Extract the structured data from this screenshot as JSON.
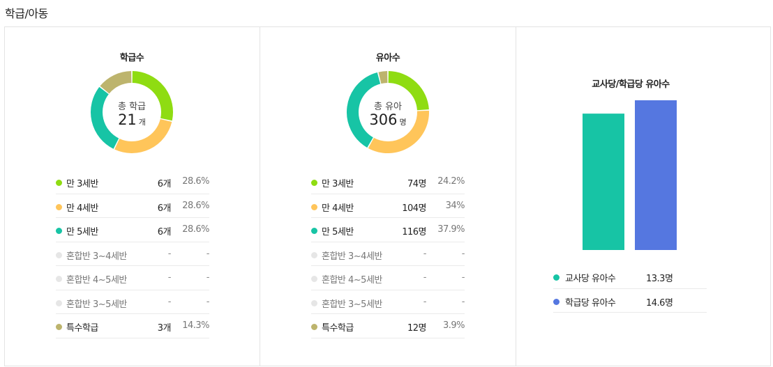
{
  "section_title": "학급/아동",
  "colors": {
    "age3": "#8fdc12",
    "age4": "#ffc55a",
    "age5": "#17c4a5",
    "mixed": "#e6e6e6",
    "special": "#bdb46d",
    "bar_teacher": "#17c4a5",
    "bar_class": "#5577e0"
  },
  "chart_data": [
    {
      "type": "pie",
      "title": "학급수",
      "center_label": "총 학급",
      "center_value": "21",
      "center_unit": "개",
      "categories": [
        "만 3세반",
        "만 4세반",
        "만 5세반",
        "혼합반 3~4세반",
        "혼합반 4~5세반",
        "혼합반 3~5세반",
        "특수학급"
      ],
      "values": [
        6,
        6,
        6,
        0,
        0,
        0,
        3
      ],
      "counts": [
        "6개",
        "6개",
        "6개",
        "-",
        "-",
        "-",
        "3개"
      ],
      "percents": [
        "28.6%",
        "28.6%",
        "28.6%",
        "-",
        "-",
        "-",
        "14.3%"
      ]
    },
    {
      "type": "pie",
      "title": "유아수",
      "center_label": "총 유아",
      "center_value": "306",
      "center_unit": "명",
      "categories": [
        "만 3세반",
        "만 4세반",
        "만 5세반",
        "혼합반 3~4세반",
        "혼합반 4~5세반",
        "혼합반 3~5세반",
        "특수학급"
      ],
      "values": [
        74,
        104,
        116,
        0,
        0,
        0,
        12
      ],
      "counts": [
        "74명",
        "104명",
        "116명",
        "-",
        "-",
        "-",
        "12명"
      ],
      "percents": [
        "24.2%",
        "34%",
        "37.9%",
        "-",
        "-",
        "-",
        "3.9%"
      ]
    },
    {
      "type": "bar",
      "title": "교사당/학급당 유아수",
      "categories": [
        "교사당 유아수",
        "학급당 유아수"
      ],
      "values": [
        13.3,
        14.6
      ],
      "value_labels": [
        "13.3명",
        "14.6명"
      ]
    }
  ]
}
